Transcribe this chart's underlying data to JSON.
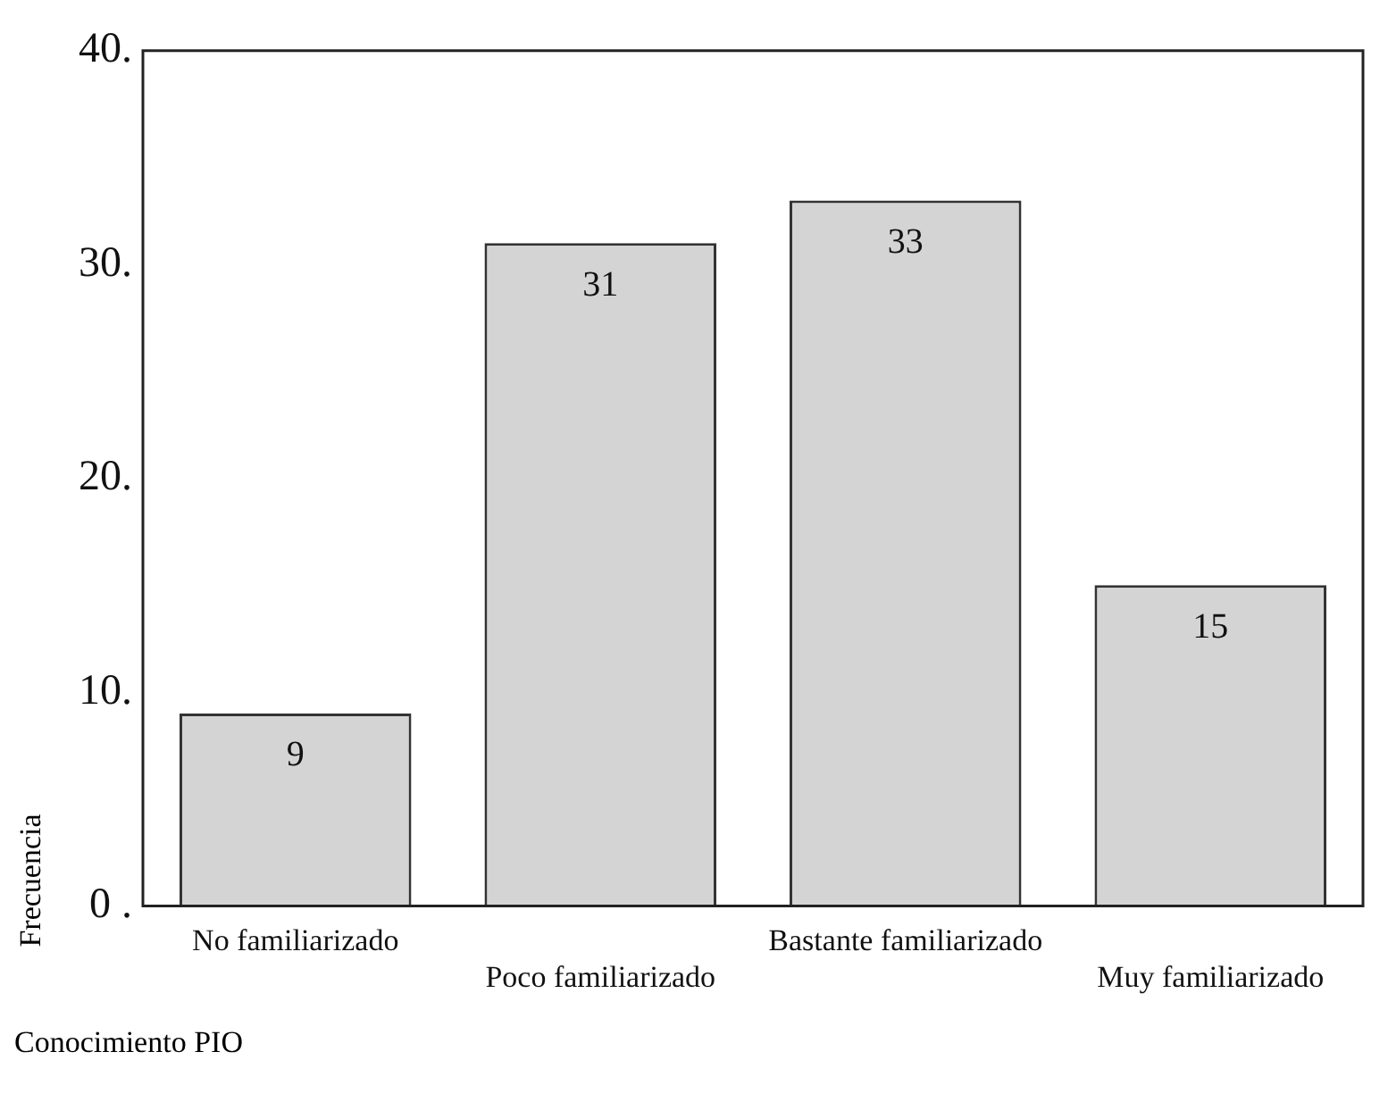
{
  "chart_data": {
    "type": "bar",
    "xlabel": "Conocimiento PIO",
    "ylabel": "Frecuencia",
    "categories": [
      "No familiarizado",
      "Poco familiarizado",
      "Bastante familiarizado",
      "Muy familiarizado"
    ],
    "values": [
      9,
      31,
      33,
      15
    ],
    "color": "#d4d4d4",
    "data_labels": true,
    "grid": false,
    "legend": false,
    "ylim": [
      0,
      40
    ],
    "yticks": [
      {
        "value": 0,
        "label": "0 ."
      },
      {
        "value": 10,
        "label": "10."
      },
      {
        "value": 20,
        "label": "20."
      },
      {
        "value": 30,
        "label": "30."
      },
      {
        "value": 40,
        "label": "40."
      }
    ]
  }
}
